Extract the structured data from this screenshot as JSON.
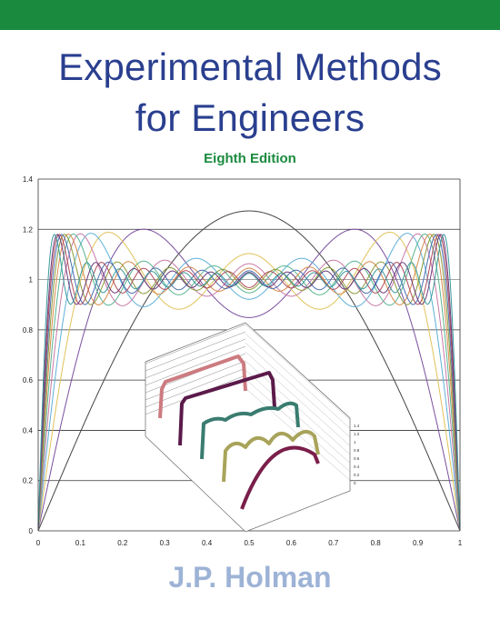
{
  "cover": {
    "title_line1": "Experimental Methods",
    "title_line2": "for Engineers",
    "edition": "Eighth Edition",
    "author": "J.P. Holman"
  },
  "colors": {
    "band": "#1a8a3e",
    "title": "#2a3f8f",
    "edition": "#1a8a3e",
    "author": "#9db3d6"
  },
  "chart_data": {
    "type": "line",
    "xlim": [
      0,
      1
    ],
    "ylim": [
      0,
      1.4
    ],
    "x_ticks": [
      "0",
      "0.1",
      "0.2",
      "0.3",
      "0.4",
      "0.5",
      "0.6",
      "0.7",
      "0.8",
      "0.9",
      "1"
    ],
    "y_ticks": [
      "0",
      "0.2",
      "0.4",
      "0.6",
      "0.8",
      "1",
      "1.2",
      "1.4"
    ],
    "grid": "horizontal",
    "series": [
      {
        "terms": 1,
        "color": "#444444"
      },
      {
        "terms": 3,
        "color": "#7a4f9e"
      },
      {
        "terms": 5,
        "color": "#e0c25a"
      },
      {
        "terms": 7,
        "color": "#5fb0d8"
      },
      {
        "terms": 9,
        "color": "#c77aa6"
      },
      {
        "terms": 11,
        "color": "#58b58f"
      },
      {
        "terms": 13,
        "color": "#d68a4a"
      },
      {
        "terms": 15,
        "color": "#8a9a3a"
      },
      {
        "terms": 17,
        "color": "#4a6fb0"
      },
      {
        "terms": 19,
        "color": "#b04a5a"
      },
      {
        "terms": 21,
        "color": "#6a3a7a"
      },
      {
        "terms": 25,
        "color": "#3a9a9a"
      }
    ],
    "inset": {
      "type": "3d-ribbon",
      "ribbon_colors": [
        "#cc7b80",
        "#5b1a4a",
        "#3a7c70",
        "#a8a35a",
        "#7a1e4a"
      ],
      "y_ticks": [
        "1.4",
        "1.2",
        "1",
        "0.8",
        "0.6",
        "0.4",
        "0.2",
        "0"
      ]
    }
  }
}
